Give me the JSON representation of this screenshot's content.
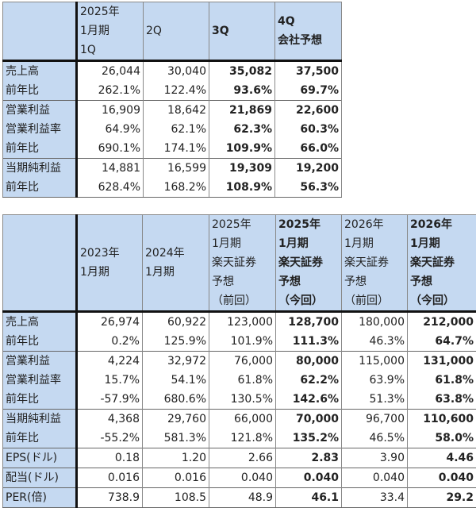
{
  "quarterly": {
    "headers": [
      "",
      "2025年\n1月期\n1Q",
      "2Q",
      "3Q",
      "4Q\n会社予想"
    ],
    "bold_cols": [
      3,
      4
    ],
    "groups": [
      2,
      3,
      2
    ],
    "rows": [
      [
        "売上高",
        "26,044",
        "30,040",
        "35,082",
        "37,500"
      ],
      [
        "前年比",
        "262.1%",
        "122.4%",
        "93.6%",
        "69.7%"
      ],
      [
        "営業利益",
        "16,909",
        "18,642",
        "21,869",
        "22,600"
      ],
      [
        "営業利益率",
        "64.9%",
        "62.1%",
        "62.3%",
        "60.3%"
      ],
      [
        "前年比",
        "690.1%",
        "174.1%",
        "109.9%",
        "66.0%"
      ],
      [
        "当期純利益",
        "14,881",
        "16,599",
        "19,309",
        "19,200"
      ],
      [
        "前年比",
        "628.4%",
        "168.2%",
        "108.9%",
        "56.3%"
      ]
    ]
  },
  "annual": {
    "headers": [
      "",
      "2023年\n1月期",
      "2024年\n1月期",
      "2025年\n1月期\n楽天証券\n予想\n（前回）",
      "2025年\n1月期\n楽天証券\n予想\n（今回）",
      "2026年\n1月期\n楽天証券\n予想\n（前回）",
      "2026年\n1月期\n楽天証券\n予想\n（今回）"
    ],
    "bold_cols": [
      4,
      6
    ],
    "groups": [
      2,
      3,
      2,
      1,
      1,
      1
    ],
    "rows": [
      [
        "売上高",
        "26,974",
        "60,922",
        "123,000",
        "128,700",
        "180,000",
        "212,000"
      ],
      [
        "前年比",
        "0.2%",
        "125.9%",
        "101.9%",
        "111.3%",
        "46.3%",
        "64.7%"
      ],
      [
        "営業利益",
        "4,224",
        "32,972",
        "76,000",
        "80,000",
        "115,000",
        "131,000"
      ],
      [
        "営業利益率",
        "15.7%",
        "54.1%",
        "61.8%",
        "62.2%",
        "63.9%",
        "61.8%"
      ],
      [
        "前年比",
        "-57.9%",
        "680.6%",
        "130.5%",
        "142.6%",
        "51.3%",
        "63.8%"
      ],
      [
        "当期純利益",
        "4,368",
        "29,760",
        "66,000",
        "70,000",
        "96,700",
        "110,600"
      ],
      [
        "前年比",
        "-55.2%",
        "581.3%",
        "121.8%",
        "135.2%",
        "46.5%",
        "58.0%"
      ],
      [
        "EPS(ドル)",
        "0.18",
        "1.20",
        "2.66",
        "2.83",
        "3.90",
        "4.46"
      ],
      [
        "配当(ドル)",
        "0.016",
        "0.016",
        "0.040",
        "0.040",
        "0.040",
        "0.040"
      ],
      [
        "PER(倍)",
        "738.9",
        "108.5",
        "48.9",
        "46.1",
        "33.4",
        "29.2"
      ]
    ]
  },
  "colors": {
    "header_bg": "#c5d9f1",
    "border": "#111111"
  }
}
